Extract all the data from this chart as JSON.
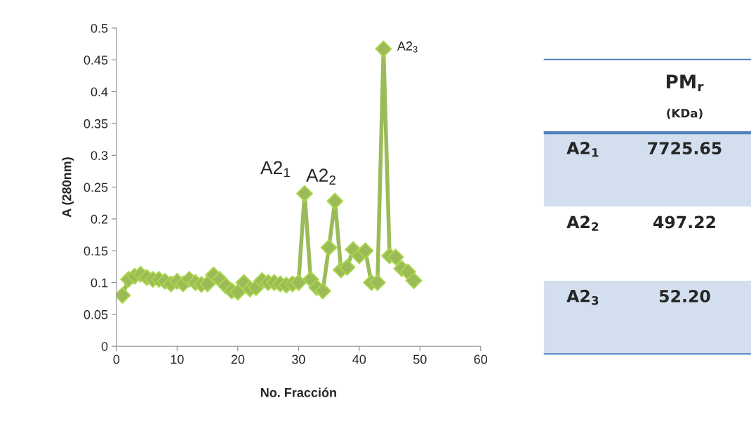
{
  "chart_data": [
    {
      "type": "line",
      "xlabel": "No. Fracción",
      "ylabel": "A (280nm)",
      "x": [
        1,
        2,
        3,
        4,
        5,
        6,
        7,
        8,
        9,
        10,
        11,
        12,
        13,
        14,
        15,
        16,
        17,
        18,
        19,
        20,
        21,
        22,
        23,
        24,
        25,
        26,
        27,
        28,
        29,
        30,
        31,
        32,
        33,
        34,
        35,
        36,
        37,
        38,
        39,
        40,
        41,
        42,
        43,
        44,
        45,
        46,
        47,
        48,
        49
      ],
      "series": [
        {
          "color": "#9bbb59",
          "values": [
            0.08,
            0.105,
            0.11,
            0.113,
            0.108,
            0.105,
            0.105,
            0.102,
            0.098,
            0.102,
            0.098,
            0.105,
            0.1,
            0.097,
            0.098,
            0.112,
            0.105,
            0.095,
            0.087,
            0.085,
            0.1,
            0.09,
            0.092,
            0.103,
            0.1,
            0.1,
            0.098,
            0.096,
            0.098,
            0.1,
            0.24,
            0.105,
            0.092,
            0.087,
            0.155,
            0.228,
            0.12,
            0.124,
            0.152,
            0.142,
            0.15,
            0.1,
            0.1,
            0.467,
            0.142,
            0.14,
            0.122,
            0.117,
            0.103
          ]
        }
      ],
      "xlim": [
        0,
        60
      ],
      "xticks": [
        0,
        10,
        20,
        30,
        40,
        50,
        60
      ],
      "ylim": [
        0,
        0.5
      ],
      "yticks": [
        0,
        0.05,
        0.1,
        0.15,
        0.2,
        0.25,
        0.3,
        0.35,
        0.4,
        0.45,
        0.5
      ],
      "marker": "diamond",
      "line_style": "solid",
      "grid": false,
      "legend": false,
      "annotations": [
        {
          "text": "A2$_{1}$",
          "x": 31,
          "y": 0.24
        },
        {
          "text": "A2$_{2}$",
          "x": 36,
          "y": 0.228
        },
        {
          "text": "A2$_{3}$",
          "x": 44,
          "y": 0.467
        }
      ]
    },
    {
      "type": "other",
      "title": "PM$_{r}$",
      "subtitle": "(KDa)",
      "categories": [
        "A2$_{1}$",
        "A2$_{2}$",
        "A2$_{3}$"
      ],
      "value_labels": [
        "7725.65",
        "497.22",
        "52.20"
      ],
      "colors": [
        "#d3dfee",
        "#ffffff",
        "#d3dfee"
      ]
    }
  ]
}
